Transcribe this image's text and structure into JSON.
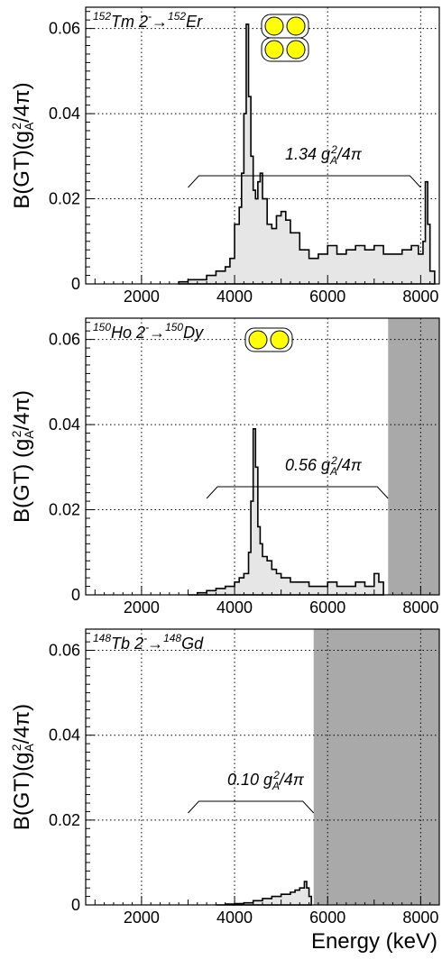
{
  "figure": {
    "xlabel": "Energy (keV)"
  },
  "chart_data": [
    {
      "type": "area",
      "reaction": {
        "parent_mass": "152",
        "parent": "Tm 2",
        "parent_sup": "-",
        "arrow": "→",
        "daughter_mass": "152",
        "daughter": "Er"
      },
      "ylabel": "B(GT)(g",
      "ylabel_sub": "A",
      "ylabel_sup": "2",
      "ylabel_tail": "/4π)",
      "annotation": {
        "value": "1.34 g",
        "sub": "A",
        "sup": "2",
        "tail": "/4π",
        "bracket_from": 3000,
        "bracket_to": 8000
      },
      "pairs": 2,
      "xlim": [
        800,
        8400
      ],
      "ylim": [
        0,
        0.065
      ],
      "xticks": [
        2000,
        4000,
        6000,
        8000
      ],
      "yticks": [
        0,
        0.02,
        0.04,
        0.06
      ],
      "ytick_labels": [
        "0",
        "0.02",
        "0.04",
        "0.06"
      ],
      "grid": true,
      "shaded_from": null,
      "x": [
        2800,
        3000,
        3200,
        3400,
        3600,
        3800,
        3900,
        4000,
        4100,
        4150,
        4200,
        4250,
        4300,
        4350,
        4400,
        4450,
        4500,
        4550,
        4600,
        4700,
        4800,
        4900,
        5000,
        5100,
        5200,
        5400,
        5600,
        5800,
        6000,
        6200,
        6400,
        6600,
        6800,
        7000,
        7200,
        7400,
        7600,
        7800,
        7950,
        8050,
        8100,
        8150,
        8200,
        8300
      ],
      "y": [
        0.0005,
        0.001,
        0.001,
        0.002,
        0.003,
        0.004,
        0.006,
        0.014,
        0.018,
        0.026,
        0.04,
        0.061,
        0.044,
        0.03,
        0.022,
        0.02,
        0.024,
        0.026,
        0.02,
        0.014,
        0.013,
        0.016,
        0.017,
        0.015,
        0.012,
        0.008,
        0.006,
        0.007,
        0.009,
        0.007,
        0.008,
        0.009,
        0.008,
        0.009,
        0.007,
        0.007,
        0.008,
        0.009,
        0.007,
        0.01,
        0.024,
        0.014,
        0.003,
        0.0
      ]
    },
    {
      "type": "area",
      "reaction": {
        "parent_mass": "150",
        "parent": "Ho 2",
        "parent_sup": "-",
        "arrow": "→",
        "daughter_mass": "150",
        "daughter": "Dy"
      },
      "ylabel": "B(GT) (g",
      "ylabel_sub": "A",
      "ylabel_sup": "2",
      "ylabel_tail": "/4π)",
      "annotation": {
        "value": "0.56 g",
        "sub": "A",
        "sup": "2",
        "tail": "/4π",
        "bracket_from": 3400,
        "bracket_to": 7300
      },
      "pairs": 1,
      "xlim": [
        800,
        8400
      ],
      "ylim": [
        0,
        0.065
      ],
      "xticks": [
        2000,
        4000,
        6000,
        8000
      ],
      "yticks": [
        0,
        0.02,
        0.04,
        0.06
      ],
      "ytick_labels": [
        "0",
        "0.02",
        "0.04",
        "0.06"
      ],
      "grid": true,
      "shaded_from": 7300,
      "x": [
        3000,
        3200,
        3400,
        3600,
        3800,
        4000,
        4100,
        4200,
        4300,
        4350,
        4400,
        4450,
        4500,
        4550,
        4600,
        4700,
        4800,
        4900,
        5000,
        5200,
        5400,
        5600,
        5800,
        6000,
        6200,
        6400,
        6600,
        6800,
        7000,
        7100,
        7200
      ],
      "y": [
        0.0,
        0.0005,
        0.001,
        0.0015,
        0.002,
        0.003,
        0.004,
        0.005,
        0.01,
        0.022,
        0.039,
        0.03,
        0.016,
        0.012,
        0.009,
        0.008,
        0.006,
        0.005,
        0.004,
        0.003,
        0.003,
        0.002,
        0.002,
        0.003,
        0.002,
        0.002,
        0.003,
        0.002,
        0.005,
        0.003,
        0.0
      ]
    },
    {
      "type": "area",
      "reaction": {
        "parent_mass": "148",
        "parent": "Tb 2",
        "parent_sup": "-",
        "arrow": "→",
        "daughter_mass": "148",
        "daughter": "Gd"
      },
      "ylabel": "B(GT)(g",
      "ylabel_sub": "A",
      "ylabel_sup": "2",
      "ylabel_tail": "/4π)",
      "annotation": {
        "value": "0.10 g",
        "sub": "A",
        "sup": "2",
        "tail": "/4π",
        "bracket_from": 3000,
        "bracket_to": 5700
      },
      "pairs": 0,
      "xlim": [
        800,
        8400
      ],
      "ylim": [
        0,
        0.065
      ],
      "xticks": [
        2000,
        4000,
        6000,
        8000
      ],
      "yticks": [
        0,
        0.02,
        0.04,
        0.06
      ],
      "ytick_labels": [
        "0",
        "0.02",
        "0.04",
        "0.06"
      ],
      "grid": true,
      "shaded_from": 5700,
      "x": [
        3600,
        3800,
        4000,
        4200,
        4400,
        4600,
        4800,
        5000,
        5200,
        5300,
        5400,
        5500,
        5550,
        5600,
        5650
      ],
      "y": [
        0.0,
        0.0002,
        0.0003,
        0.0005,
        0.001,
        0.0015,
        0.002,
        0.0025,
        0.003,
        0.0035,
        0.004,
        0.0055,
        0.004,
        0.002,
        0.0
      ]
    }
  ]
}
